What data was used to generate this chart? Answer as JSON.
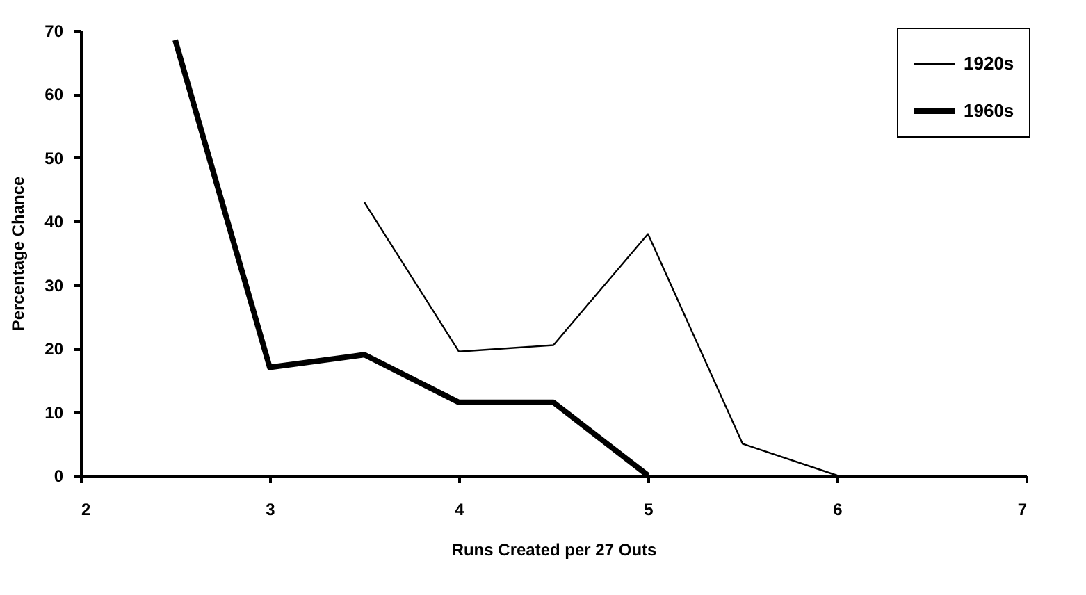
{
  "chart_data": {
    "type": "line",
    "xlabel": "Runs Created per 27 Outs",
    "ylabel": "Percentage Chance",
    "series": [
      {
        "name": "1920s",
        "color": "#000000",
        "x": [
          3.5,
          4,
          4.5,
          5,
          5.5,
          6
        ],
        "values": [
          43,
          19.5,
          20.5,
          38,
          5,
          0
        ]
      },
      {
        "name": "1960s",
        "color": "#000000",
        "x": [
          2.5,
          3,
          3.5,
          4,
          4.5,
          5
        ],
        "values": [
          68.5,
          17,
          19,
          11.5,
          11.5,
          0
        ]
      }
    ],
    "xlim": [
      2,
      7
    ],
    "xticks": [
      2,
      3,
      4,
      5,
      6,
      7
    ],
    "ylim": [
      0,
      70
    ],
    "yticks": [
      0,
      10,
      20,
      30,
      40,
      50,
      60,
      70
    ],
    "grid": false,
    "legend": "top right",
    "marker": "none",
    "line_style": "solid"
  }
}
